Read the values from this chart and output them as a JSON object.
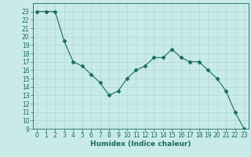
{
  "x": [
    0,
    1,
    2,
    3,
    4,
    5,
    6,
    7,
    8,
    9,
    10,
    11,
    12,
    13,
    14,
    15,
    16,
    17,
    18,
    19,
    20,
    21,
    22,
    23
  ],
  "y": [
    23,
    23,
    23,
    19.5,
    17,
    16.5,
    15.5,
    14.5,
    13,
    13.5,
    15,
    16,
    16.5,
    17.5,
    17.5,
    18.5,
    17.5,
    17,
    17,
    16,
    15,
    13.5,
    11,
    9
  ],
  "xlabel": "Humidex (Indice chaleur)",
  "ylim": [
    9,
    24
  ],
  "xlim": [
    -0.5,
    23.5
  ],
  "yticks": [
    9,
    10,
    11,
    12,
    13,
    14,
    15,
    16,
    17,
    18,
    19,
    20,
    21,
    22,
    23
  ],
  "xticks": [
    0,
    1,
    2,
    3,
    4,
    5,
    6,
    7,
    8,
    9,
    10,
    11,
    12,
    13,
    14,
    15,
    16,
    17,
    18,
    19,
    20,
    21,
    22,
    23
  ],
  "line_color": "#1a6b5a",
  "marker": "D",
  "marker_size": 2.5,
  "bg_color": "#c8ebe8",
  "grid_color": "#b0d8d3",
  "label_fontsize": 6.5,
  "tick_fontsize": 5.5
}
